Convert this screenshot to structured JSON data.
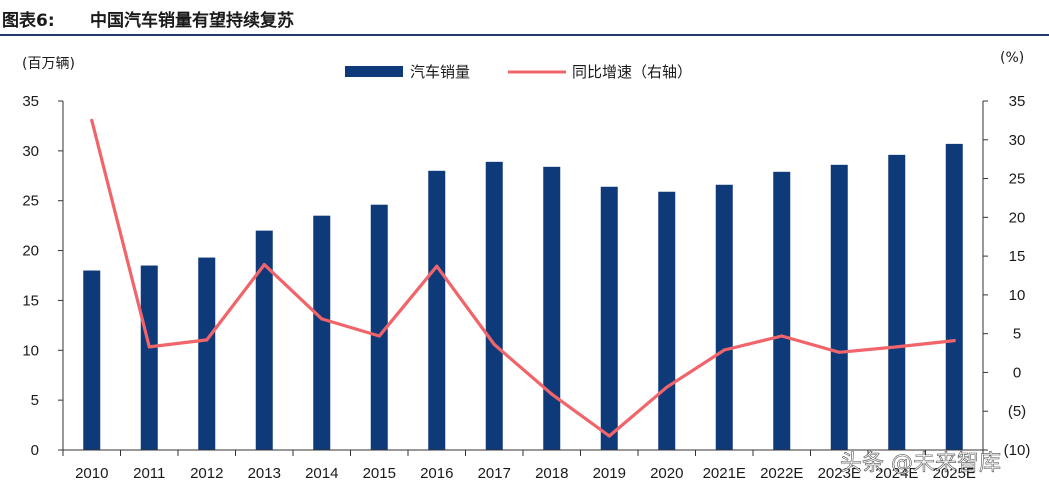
{
  "figure": {
    "label": "图表6:",
    "title": "中国汽车销量有望持续复苏"
  },
  "watermark": "头条 @未来智库",
  "colors": {
    "bar": "#0f3a7a",
    "line": "#f0646a",
    "axis": "#333333",
    "title_rule": "#1f3a6b"
  },
  "chart_data": {
    "type": "bar",
    "title": "中国汽车销量有望持续复苏",
    "categories": [
      "2010",
      "2011",
      "2012",
      "2013",
      "2014",
      "2015",
      "2016",
      "2017",
      "2018",
      "2019",
      "2020",
      "2021E",
      "2022E",
      "2023E",
      "2024E",
      "2025E"
    ],
    "series": [
      {
        "name": "汽车销量",
        "axis": "left",
        "type": "bar",
        "values": [
          18.0,
          18.5,
          19.3,
          22.0,
          23.5,
          24.6,
          28.0,
          28.9,
          28.4,
          26.4,
          25.9,
          26.6,
          27.9,
          28.6,
          29.6,
          30.7
        ]
      },
      {
        "name": "同比增速（右轴）",
        "axis": "right",
        "type": "line",
        "values": [
          32.5,
          3.3,
          4.2,
          13.9,
          6.9,
          4.7,
          13.7,
          3.6,
          -2.8,
          -8.2,
          -1.9,
          2.9,
          4.7,
          2.6,
          3.3,
          4.1
        ]
      }
    ],
    "left_axis": {
      "unit": "(百万辆)",
      "ylim": [
        0,
        35
      ],
      "ticks": [
        "0",
        "5",
        "10",
        "15",
        "20",
        "25",
        "30",
        "35"
      ]
    },
    "right_axis": {
      "unit": "(%)",
      "ylim": [
        -10,
        35
      ],
      "ticks": [
        "(10)",
        "(5)",
        "0",
        "5",
        "10",
        "15",
        "20",
        "25",
        "30",
        "35"
      ]
    },
    "legend": {
      "position": "top-center",
      "labels": [
        "汽车销量",
        "同比增速（右轴）"
      ]
    },
    "grid": false
  }
}
